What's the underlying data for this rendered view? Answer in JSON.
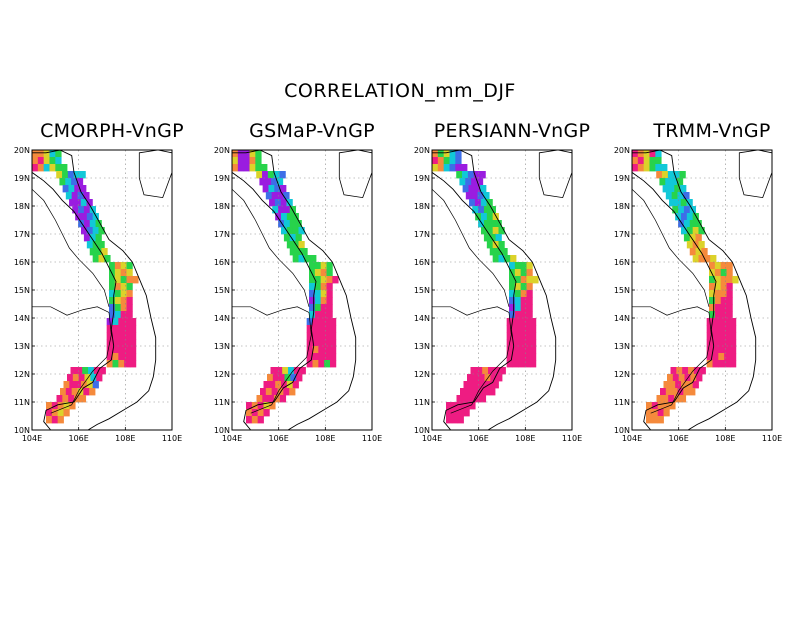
{
  "figure": {
    "title": "CORRELATION_mm_DJF",
    "panels": [
      {
        "title": "CMORPH-VnGP"
      },
      {
        "title": "GSMaP-VnGP"
      },
      {
        "title": "PERSIANN-VnGP"
      },
      {
        "title": "TRMM-VnGP"
      }
    ],
    "lat_labels": [
      "20N",
      "19N",
      "18N",
      "17N",
      "16N",
      "15N",
      "14N",
      "13N",
      "12N",
      "11N",
      "10N"
    ],
    "lon_labels": [
      "104E",
      "106E",
      "108E",
      "110E"
    ],
    "colors": {
      "magenta": "#ee1c82",
      "orange": "#f58a3c",
      "yellow": "#dcd22a",
      "green": "#27d34b",
      "cyan": "#11c8d8",
      "blue": "#3d6ee8",
      "purple": "#9a1ce0",
      "dark_purple": "#6a0fc0"
    }
  }
}
